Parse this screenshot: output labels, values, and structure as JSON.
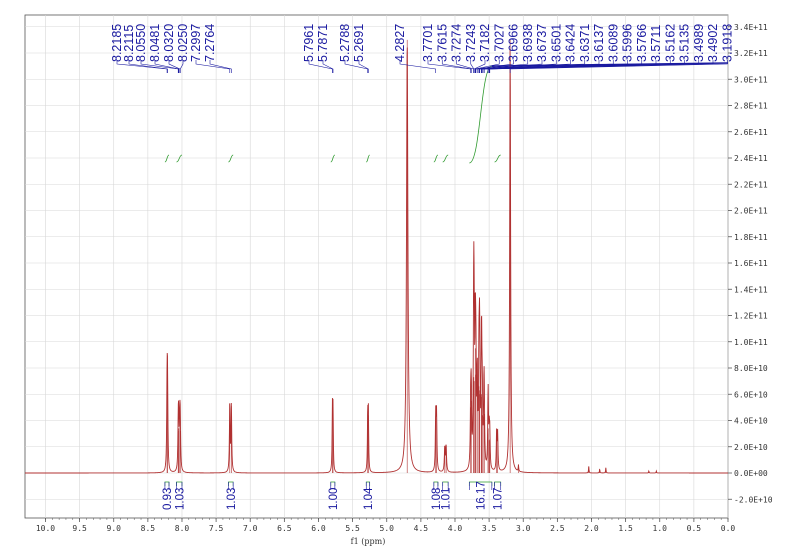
{
  "chart_data": {
    "type": "line",
    "title": "",
    "xlabel": "f1 (ppm)",
    "ylabel": "",
    "x_reversed": true,
    "xlim": [
      0.0,
      10.3
    ],
    "ylim": [
      -25000000000.0,
      350000000000.0
    ],
    "grid": true,
    "x_ticks": [
      "10.0",
      "9.5",
      "9.0",
      "8.5",
      "8.0",
      "7.5",
      "7.0",
      "6.5",
      "6.0",
      "5.5",
      "5.0",
      "4.5",
      "4.0",
      "3.5",
      "3.0",
      "2.5",
      "2.0",
      "1.5",
      "1.0",
      "0.5",
      "0.0"
    ],
    "y_ticks": [
      {
        "v": -20000000000.0,
        "label": "-2.0E+10"
      },
      {
        "v": 0,
        "label": "0.0E+00"
      },
      {
        "v": 20000000000.0,
        "label": "2.0E+10"
      },
      {
        "v": 40000000000.0,
        "label": "4.0E+10"
      },
      {
        "v": 60000000000.0,
        "label": "6.0E+10"
      },
      {
        "v": 80000000000.0,
        "label": "8.0E+10"
      },
      {
        "v": 100000000000.0,
        "label": "1.0E+11"
      },
      {
        "v": 120000000000.0,
        "label": "1.2E+11"
      },
      {
        "v": 140000000000.0,
        "label": "1.4E+11"
      },
      {
        "v": 160000000000.0,
        "label": "1.6E+11"
      },
      {
        "v": 180000000000.0,
        "label": "1.8E+11"
      },
      {
        "v": 200000000000.0,
        "label": "2.0E+11"
      },
      {
        "v": 220000000000.0,
        "label": "2.2E+11"
      },
      {
        "v": 240000000000.0,
        "label": "2.4E+11"
      },
      {
        "v": 260000000000.0,
        "label": "2.6E+11"
      },
      {
        "v": 280000000000.0,
        "label": "2.8E+11"
      },
      {
        "v": 300000000000.0,
        "label": "3.0E+11"
      },
      {
        "v": 320000000000.0,
        "label": "3.2E+11"
      },
      {
        "v": 340000000000.0,
        "label": "3.4E+11"
      }
    ],
    "peaks": [
      {
        "ppm": 8.2185,
        "height": 62000000000.0,
        "width": 0.006
      },
      {
        "ppm": 8.2115,
        "height": 60000000000.0,
        "width": 0.006
      },
      {
        "ppm": 8.055,
        "height": 32000000000.0,
        "width": 0.006
      },
      {
        "ppm": 8.0481,
        "height": 34000000000.0,
        "width": 0.006
      },
      {
        "ppm": 8.032,
        "height": 35000000000.0,
        "width": 0.006
      },
      {
        "ppm": 8.025,
        "height": 32000000000.0,
        "width": 0.006
      },
      {
        "ppm": 7.2997,
        "height": 53000000000.0,
        "width": 0.006
      },
      {
        "ppm": 7.2764,
        "height": 51000000000.0,
        "width": 0.006
      },
      {
        "ppm": 5.7961,
        "height": 46000000000.0,
        "width": 0.005
      },
      {
        "ppm": 5.7871,
        "height": 45000000000.0,
        "width": 0.005
      },
      {
        "ppm": 5.2788,
        "height": 45000000000.0,
        "width": 0.005
      },
      {
        "ppm": 5.2691,
        "height": 44000000000.0,
        "width": 0.005
      },
      {
        "ppm": 4.7,
        "height": 330000000000.0,
        "width": 0.012
      },
      {
        "ppm": 4.2827,
        "height": 43000000000.0,
        "width": 0.006
      },
      {
        "ppm": 4.27,
        "height": 43000000000.0,
        "width": 0.006
      },
      {
        "ppm": 4.15,
        "height": 19000000000.0,
        "width": 0.007
      },
      {
        "ppm": 4.13,
        "height": 20000000000.0,
        "width": 0.007
      },
      {
        "ppm": 3.7701,
        "height": 50000000000.0,
        "width": 0.006
      },
      {
        "ppm": 3.7615,
        "height": 55000000000.0,
        "width": 0.006
      },
      {
        "ppm": 3.7274,
        "height": 70000000000.0,
        "width": 0.006
      },
      {
        "ppm": 3.7243,
        "height": 73000000000.0,
        "width": 0.006
      },
      {
        "ppm": 3.7182,
        "height": 70000000000.0,
        "width": 0.006
      },
      {
        "ppm": 3.7027,
        "height": 95000000000.0,
        "width": 0.006
      },
      {
        "ppm": 3.6938,
        "height": 75000000000.0,
        "width": 0.006
      },
      {
        "ppm": 3.6737,
        "height": 68000000000.0,
        "width": 0.006
      },
      {
        "ppm": 3.6501,
        "height": 66000000000.0,
        "width": 0.006
      },
      {
        "ppm": 3.6424,
        "height": 63000000000.0,
        "width": 0.006
      },
      {
        "ppm": 3.6371,
        "height": 60000000000.0,
        "width": 0.006
      },
      {
        "ppm": 3.6137,
        "height": 58000000000.0,
        "width": 0.006
      },
      {
        "ppm": 3.6089,
        "height": 60000000000.0,
        "width": 0.006
      },
      {
        "ppm": 3.5996,
        "height": 44000000000.0,
        "width": 0.006
      },
      {
        "ppm": 3.5766,
        "height": 43000000000.0,
        "width": 0.006
      },
      {
        "ppm": 3.5711,
        "height": 45000000000.0,
        "width": 0.006
      },
      {
        "ppm": 3.5162,
        "height": 30000000000.0,
        "width": 0.006
      },
      {
        "ppm": 3.5135,
        "height": 34000000000.0,
        "width": 0.006
      },
      {
        "ppm": 3.4989,
        "height": 25000000000.0,
        "width": 0.006
      },
      {
        "ppm": 3.4902,
        "height": 26000000000.0,
        "width": 0.006
      },
      {
        "ppm": 3.39,
        "height": 30000000000.0,
        "width": 0.006
      },
      {
        "ppm": 3.375,
        "height": 28000000000.0,
        "width": 0.006
      },
      {
        "ppm": 3.1918,
        "height": 330000000000.0,
        "width": 0.008
      },
      {
        "ppm": 3.07,
        "height": 5000000000.0,
        "width": 0.004
      },
      {
        "ppm": 2.04,
        "height": 5000000000.0,
        "width": 0.004
      },
      {
        "ppm": 1.88,
        "height": 3000000000.0,
        "width": 0.004
      },
      {
        "ppm": 1.79,
        "height": 4000000000.0,
        "width": 0.004
      },
      {
        "ppm": 1.16,
        "height": 1500000000.0,
        "width": 0.004
      },
      {
        "ppm": 1.05,
        "height": 1500000000.0,
        "width": 0.004
      }
    ],
    "peak_label_groups": [
      {
        "labels": [
          "8.2185",
          "8.2115",
          "8.0550",
          "8.0481",
          "8.0320",
          "8.0250",
          "7.2997",
          "7.2764"
        ]
      },
      {
        "labels": [
          "5.7961",
          "5.7871",
          "5.2788",
          "5.2691"
        ]
      },
      {
        "labels": [
          "4.2827",
          "3.7701",
          "3.7615",
          "3.7274",
          "3.7243",
          "3.7182",
          "3.7027",
          "3.6966",
          "3.6938",
          "3.6737",
          "3.6501",
          "3.6424",
          "3.6371",
          "3.6137",
          "3.6089",
          "3.5996",
          "3.5766",
          "3.5711",
          "3.5162",
          "3.5135",
          "3.4989",
          "3.4902",
          "3.1918"
        ]
      }
    ],
    "integrals": [
      {
        "from": 8.25,
        "to": 8.19,
        "value": "0.93"
      },
      {
        "from": 8.08,
        "to": 8.0,
        "value": "1.03"
      },
      {
        "from": 7.32,
        "to": 7.25,
        "value": "1.03"
      },
      {
        "from": 5.82,
        "to": 5.76,
        "value": "1.00"
      },
      {
        "from": 5.3,
        "to": 5.25,
        "value": "1.04"
      },
      {
        "from": 4.31,
        "to": 4.25,
        "value": "1.08"
      },
      {
        "from": 4.18,
        "to": 4.1,
        "value": "1.01"
      },
      {
        "from": 3.79,
        "to": 3.46,
        "value": "16.17"
      },
      {
        "from": 3.42,
        "to": 3.33,
        "value": "1.07"
      }
    ],
    "colors": {
      "spectrum": "#b03030",
      "labels": "#1a1aa0",
      "integral": "#2e9a2e",
      "grid": "#d8d8d8",
      "axis": "#555555"
    }
  }
}
